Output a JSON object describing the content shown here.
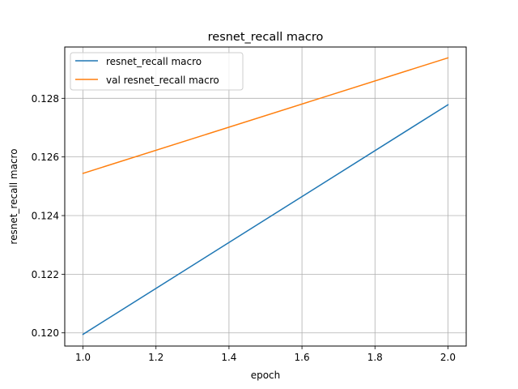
{
  "chart_data": {
    "type": "line",
    "title": "resnet_recall macro",
    "xlabel": "epoch",
    "ylabel": "resnet_recall macro",
    "xlim": [
      0.95,
      2.05
    ],
    "ylim": [
      0.11955,
      0.12975
    ],
    "x_ticks": [
      1.0,
      1.2,
      1.4,
      1.6,
      1.8,
      2.0
    ],
    "x_tick_labels": [
      "1.0",
      "1.2",
      "1.4",
      "1.6",
      "1.8",
      "2.0"
    ],
    "y_ticks": [
      0.12,
      0.122,
      0.124,
      0.126,
      0.128
    ],
    "y_tick_labels": [
      "0.120",
      "0.122",
      "0.124",
      "0.126",
      "0.128"
    ],
    "grid": true,
    "legend_position": "top-left",
    "series": [
      {
        "name": "resnet_recall macro",
        "color": "#1f77b4",
        "x": [
          1.0,
          2.0
        ],
        "y": [
          0.11995,
          0.12778
        ]
      },
      {
        "name": "val resnet_recall macro",
        "color": "#ff7f0e",
        "x": [
          1.0,
          2.0
        ],
        "y": [
          0.12544,
          0.12938
        ]
      }
    ]
  }
}
